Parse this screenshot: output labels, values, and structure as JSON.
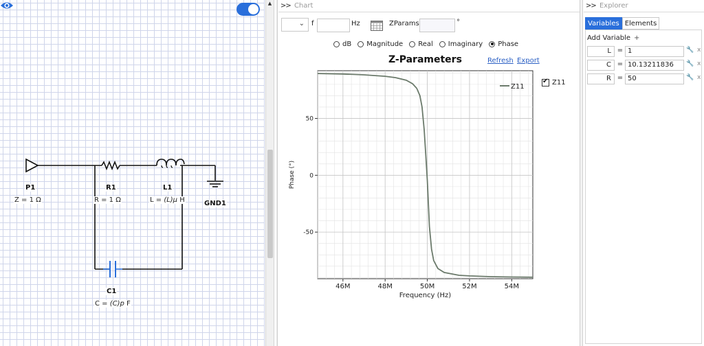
{
  "schematic": {
    "components": [
      {
        "name": "P1",
        "param_prefix": "Z = 1 ",
        "param_var": "",
        "param_unit": "Ω"
      },
      {
        "name": "R1",
        "param_prefix": "R = 1 ",
        "param_var": "",
        "param_unit": "Ω"
      },
      {
        "name": "L1",
        "param_prefix": "L = ",
        "param_var": "(L)μ",
        "param_unit": " H"
      },
      {
        "name": "GND1",
        "param_prefix": "",
        "param_var": "",
        "param_unit": ""
      },
      {
        "name": "C1",
        "param_prefix": "C = ",
        "param_var": "(C)p",
        "param_unit": " F"
      }
    ],
    "icons": {
      "visibility": "eye-icon",
      "toggle": "toggle-switch"
    },
    "accent": "#2a6fdb"
  },
  "chart_panel": {
    "header": ">> Chart",
    "header_chev": ">>",
    "header_label": "Chart",
    "toolbar": {
      "freq_label": "f",
      "freq_value": "",
      "freq_unit": "Hz",
      "params_label": "ZParams",
      "params_value": "",
      "angle_unit": "°"
    },
    "radios": [
      {
        "label": "dB",
        "checked": false
      },
      {
        "label": "Magnitude",
        "checked": false
      },
      {
        "label": "Real",
        "checked": false
      },
      {
        "label": "Imaginary",
        "checked": false
      },
      {
        "label": "Phase",
        "checked": true
      }
    ],
    "title": "Z-Parameters",
    "refresh_label": "Refresh",
    "export_label": "Export",
    "series_checkbox_label": "Z11"
  },
  "chart_data": {
    "type": "line",
    "title": "Z-Parameters",
    "xlabel": "Frequency (Hz)",
    "ylabel": "Phase (°)",
    "xlim": [
      44.8,
      55.0
    ],
    "ylim": [
      -91,
      92
    ],
    "x_ticks": [
      46,
      48,
      50,
      52,
      54
    ],
    "x_tick_labels": [
      "46M",
      "48M",
      "50M",
      "52M",
      "54M"
    ],
    "y_ticks": [
      50,
      0,
      -50
    ],
    "y_tick_labels": [
      "50",
      "0",
      "-50"
    ],
    "grid": true,
    "legend": "top-right",
    "series": [
      {
        "name": "Z11",
        "color": "#6b7a6b",
        "x": [
          44.8,
          46.0,
          47.0,
          48.0,
          48.5,
          49.0,
          49.3,
          49.5,
          49.65,
          49.75,
          49.85,
          49.92,
          50.0,
          50.05,
          50.1,
          50.2,
          50.3,
          50.5,
          50.8,
          51.5,
          52.0,
          53.0,
          54.0,
          55.0
        ],
        "y": [
          89.5,
          89.1,
          88.4,
          87.1,
          85.9,
          83.6,
          80.5,
          76.5,
          70.0,
          60.0,
          40.0,
          20.0,
          -5.0,
          -25.0,
          -45.0,
          -65.0,
          -75.0,
          -82.0,
          -85.5,
          -88.0,
          -88.5,
          -89.2,
          -89.5,
          -89.7
        ]
      }
    ]
  },
  "explorer": {
    "header_chev": ">>",
    "header_label": "Explorer",
    "tabs": [
      "Variables",
      "Elements"
    ],
    "add_variable_label": "Add Variable",
    "add_variable_plus": "+",
    "variables": [
      {
        "name": "L",
        "value": "1"
      },
      {
        "name": "C",
        "value": "10.13211836"
      },
      {
        "name": "R",
        "value": "50"
      }
    ],
    "row_tool_icon": "wrench-icon",
    "row_delete_label": "x"
  }
}
